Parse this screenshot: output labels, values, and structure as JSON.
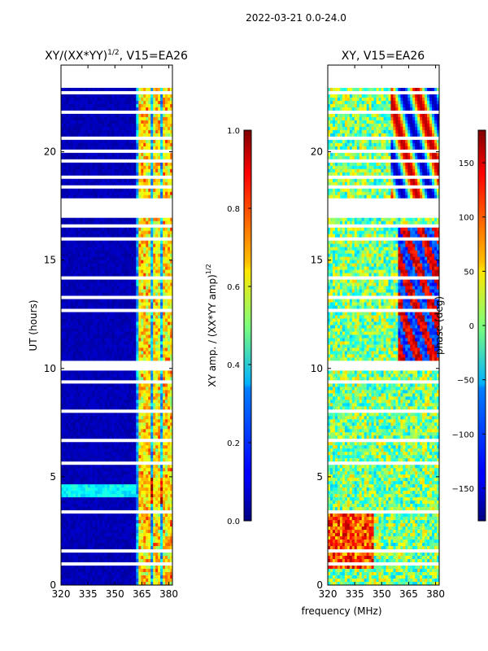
{
  "suptitle": "2022-03-21 0.0-24.0",
  "chart_data": [
    {
      "type": "heatmap",
      "title_main": "XY/(XX*YY)",
      "title_exp": "1/2",
      "title_suffix": ", V15=EA26",
      "xlabel": "",
      "ylabel": "UT (hours)",
      "xlim": [
        320,
        382
      ],
      "ylim": [
        0,
        24
      ],
      "xticks": [
        320,
        335,
        350,
        365,
        380
      ],
      "yticks": [
        0,
        5,
        10,
        15,
        20
      ],
      "colorbar": {
        "label_main": "XY amp. / (XX*YY amp)",
        "label_exp": "1/2",
        "range": [
          0.0,
          1.0
        ],
        "ticks": [
          "0.0",
          "0.2",
          "0.4",
          "0.6",
          "0.8",
          "1.0"
        ]
      },
      "gaps_hours": [
        [
          0.4,
          0.5
        ],
        [
          0.9,
          1.1
        ],
        [
          1.5,
          1.7
        ],
        [
          3.3,
          3.5
        ],
        [
          4.9,
          5.0
        ],
        [
          5.6,
          5.7
        ],
        [
          6.1,
          6.2
        ],
        [
          6.6,
          6.7
        ],
        [
          7.0,
          7.1
        ],
        [
          7.6,
          7.7
        ],
        [
          8.0,
          8.1
        ],
        [
          8.8,
          8.9
        ],
        [
          9.3,
          9.5
        ],
        [
          9.9,
          10.3
        ],
        [
          12.6,
          12.7
        ],
        [
          13.2,
          13.3
        ],
        [
          14.1,
          14.2
        ],
        [
          15.1,
          15.2
        ],
        [
          15.9,
          16.0
        ],
        [
          16.5,
          16.6
        ],
        [
          16.9,
          17.9
        ],
        [
          18.3,
          18.4
        ],
        [
          18.8,
          18.9
        ],
        [
          19.5,
          19.6
        ],
        [
          19.9,
          20.1
        ],
        [
          20.6,
          20.7
        ],
        [
          21.4,
          21.5
        ],
        [
          21.8,
          21.9
        ],
        [
          22.3,
          22.4
        ],
        [
          22.7,
          22.8
        ],
        [
          23.0,
          24.0
        ]
      ],
      "hot_region": {
        "freq_range": [
          363,
          382
        ],
        "time_range": [
          3.7,
          5.0
        ]
      }
    },
    {
      "type": "heatmap",
      "title": "XY, V15=EA26",
      "xlabel": "frequency (MHz)",
      "ylabel": "",
      "xlim": [
        320,
        382
      ],
      "ylim": [
        0,
        24
      ],
      "xticks": [
        320,
        335,
        350,
        365,
        380
      ],
      "yticks": [
        0,
        5,
        10,
        15,
        20
      ],
      "colorbar": {
        "label": "phase (deg)",
        "range": [
          -180,
          180
        ],
        "ticks": [
          "150",
          "100",
          "50",
          "0",
          "−50",
          "−100",
          "−150"
        ]
      }
    }
  ],
  "colors": {
    "jet_low": "#00007f",
    "jet_high": "#7f0000"
  }
}
